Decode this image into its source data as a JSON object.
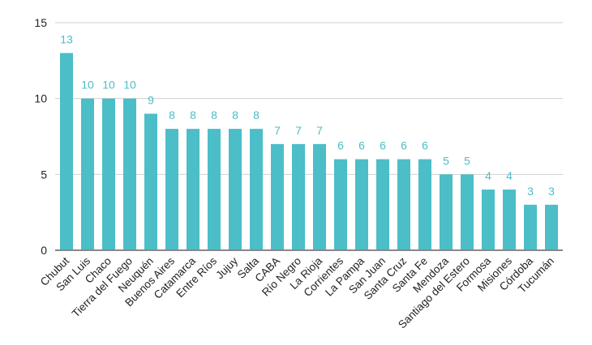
{
  "chart_data": {
    "type": "bar",
    "title": "",
    "xlabel": "",
    "ylabel": "",
    "ylim": [
      0,
      15
    ],
    "yticks": [
      0,
      5,
      10,
      15
    ],
    "grid": true,
    "color": "#4bbec8",
    "categories": [
      "Chubut",
      "San Luis",
      "Chaco",
      "Tierra del Fuego",
      "Neuquén",
      "Buenos Aires",
      "Catamarca",
      "Entre Ríos",
      "Jujuy",
      "Salta",
      "CABA",
      "Río Negro",
      "La Rioja",
      "Corrientes",
      "La Pampa",
      "San Juan",
      "Santa Cruz",
      "Santa Fe",
      "Mendoza",
      "Santiago del Estero",
      "Formosa",
      "Misiones",
      "Córdoba",
      "Tucumán"
    ],
    "values": [
      13,
      10,
      10,
      10,
      9,
      8,
      8,
      8,
      8,
      8,
      7,
      7,
      7,
      6,
      6,
      6,
      6,
      6,
      5,
      5,
      4,
      4,
      3,
      3
    ]
  }
}
